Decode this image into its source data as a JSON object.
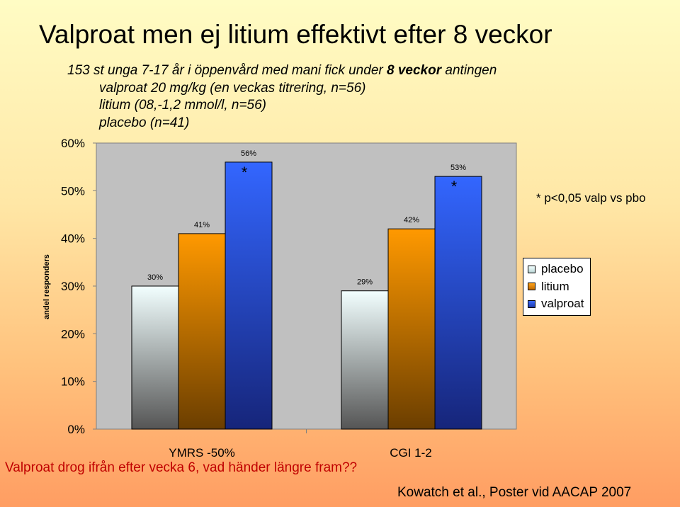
{
  "title": "Valproat men ej litium effektivt efter 8 veckor",
  "subtitle": {
    "line1_pre": "153 st unga 7-17 år i öppenvård med mani fick under ",
    "line1_bold": "8 veckor",
    "line1_post": " antingen",
    "line2": "valproat 20 mg/kg (en veckas titrering, n=56)",
    "line3": "litium (08,-1,2 mmol/l, n=56)",
    "line4": "placebo (n=41)"
  },
  "significance_note": "* p<0,05 valp vs pbo",
  "footer_question": "Valproat drog ifrån efter vecka 6, vad händer längre fram??",
  "source": "Kowatch et al., Poster vid AACAP 2007",
  "colors": {
    "placebo_top": "#f2ffff",
    "placebo_bottom": "#555555",
    "litium_top": "#ff9900",
    "litium_bottom": "#6b3e00",
    "valproat_top": "#3366ff",
    "valproat_bottom": "#16257a",
    "question_text": "#c00000"
  },
  "chart_data": {
    "type": "bar",
    "categories": [
      "YMRS -50%",
      "CGI 1-2"
    ],
    "series": [
      {
        "name": "placebo",
        "values": [
          30,
          29
        ],
        "labels": [
          "30%",
          "29%"
        ]
      },
      {
        "name": "litium",
        "values": [
          41,
          42
        ],
        "labels": [
          "41%",
          "42%"
        ]
      },
      {
        "name": "valproat",
        "values": [
          56,
          53
        ],
        "labels": [
          "56%",
          "53%"
        ]
      }
    ],
    "significance_marks": [
      {
        "category": 0,
        "series": 2,
        "mark": "*"
      },
      {
        "category": 1,
        "series": 2,
        "mark": "*"
      }
    ],
    "ylabel": "andel responders",
    "ylim": [
      0,
      60
    ],
    "yticks": [
      0,
      10,
      20,
      30,
      40,
      50,
      60
    ],
    "ytick_labels": [
      "0%",
      "10%",
      "20%",
      "30%",
      "40%",
      "50%",
      "60%"
    ],
    "legend_position": "right"
  }
}
